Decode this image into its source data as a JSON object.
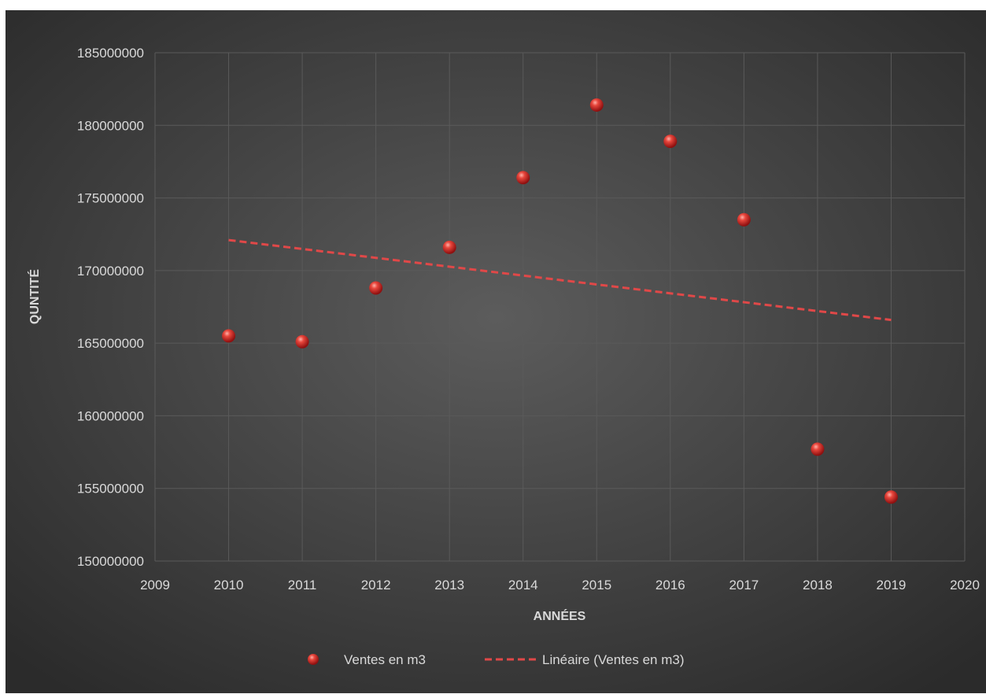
{
  "chart_data": {
    "type": "scatter",
    "title": "",
    "xlabel": "ANNÉES",
    "ylabel": "QUNTITÉ",
    "xlim": [
      2009,
      2020
    ],
    "ylim": [
      150000000,
      185000000
    ],
    "x_ticks": [
      2009,
      2010,
      2011,
      2012,
      2013,
      2014,
      2015,
      2016,
      2017,
      2018,
      2019,
      2020
    ],
    "y_ticks": [
      150000000,
      155000000,
      160000000,
      165000000,
      170000000,
      175000000,
      180000000,
      185000000
    ],
    "grid": true,
    "legend_position": "bottom",
    "series": [
      {
        "name": "Ventes en m3",
        "type": "scatter",
        "color": "#e03a3a",
        "x": [
          2010,
          2011,
          2012,
          2013,
          2014,
          2015,
          2016,
          2017,
          2018,
          2019
        ],
        "y": [
          165500000,
          165100000,
          168800000,
          171600000,
          176400000,
          181400000,
          178900000,
          173500000,
          157700000,
          154400000
        ]
      },
      {
        "name": "Linéaire (Ventes en m3)",
        "type": "trendline",
        "color": "#e04848",
        "x": [
          2010,
          2019
        ],
        "y": [
          172100000,
          166600000
        ]
      }
    ]
  }
}
